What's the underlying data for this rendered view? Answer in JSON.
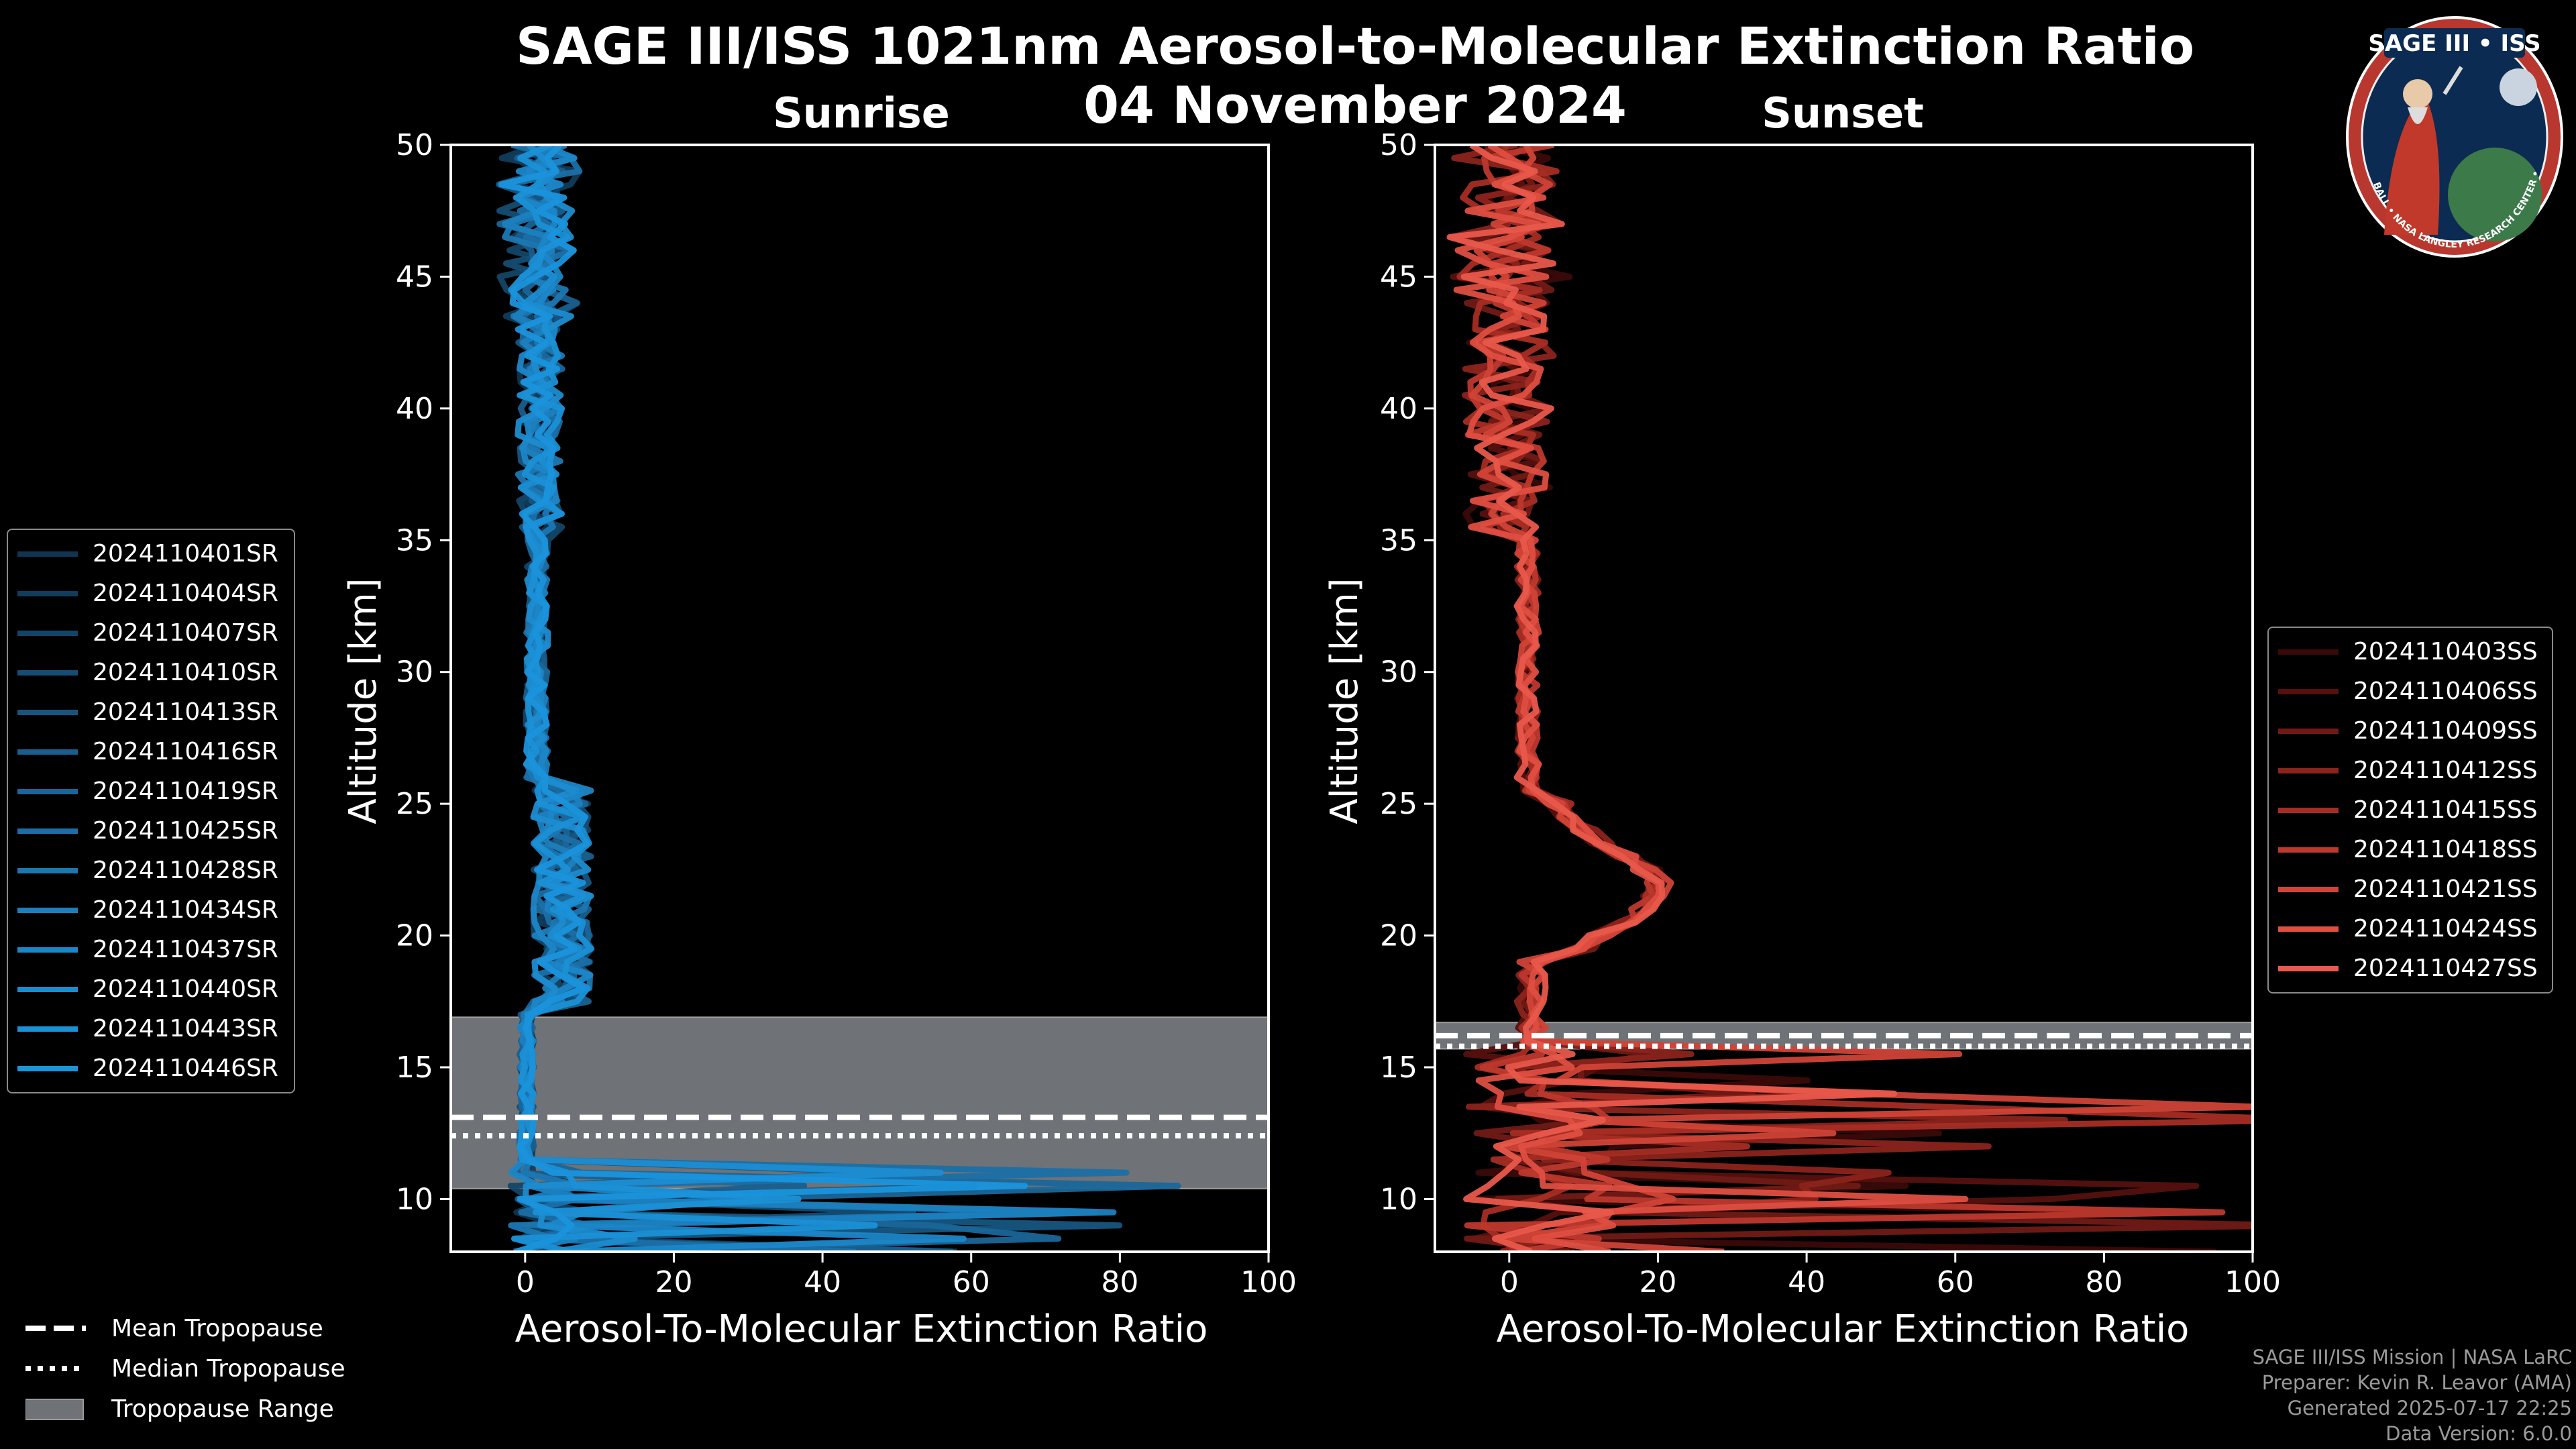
{
  "title_line1": "SAGE III/ISS 1021nm Aerosol-to-Molecular Extinction Ratio",
  "title_date": "04 November 2024",
  "logo": {
    "text": "SAGE III • ISS",
    "ring_text": "BALL • NASA LANGLEY RESEARCH CENTER • TAS-I • ESA"
  },
  "colors": {
    "sunrise": "#1a8fd6",
    "sunset": "#e8594b",
    "trop_range": "#6f7276"
  },
  "chart_data": [
    {
      "type": "line",
      "panel": "sunrise",
      "title": "Sunrise",
      "xlabel": "Aerosol-To-Molecular Extinction Ratio",
      "ylabel": "Altitude [km]",
      "xlim": [
        -10,
        100
      ],
      "ylim": [
        8,
        50
      ],
      "xticks": [
        0,
        20,
        40,
        60,
        80,
        100
      ],
      "yticks": [
        10,
        15,
        20,
        25,
        30,
        35,
        40,
        45,
        50
      ],
      "tropopause": {
        "mean": 13.1,
        "median": 12.4,
        "range": [
          10.4,
          16.9
        ]
      },
      "series_names": [
        "2024110401SR",
        "2024110404SR",
        "2024110407SR",
        "2024110410SR",
        "2024110413SR",
        "2024110416SR",
        "2024110419SR",
        "2024110425SR",
        "2024110428SR",
        "2024110434SR",
        "2024110437SR",
        "2024110440SR",
        "2024110443SR",
        "2024110446SR"
      ],
      "series_colors": [
        "#0f3550",
        "#113c5c",
        "#134467",
        "#154d74",
        "#175580",
        "#195e8c",
        "#1a6699",
        "#1b6fa6",
        "#1c77b2",
        "#1c7fbe",
        "#1c86c8",
        "#1c8cd0",
        "#1b90d6",
        "#1a94dc"
      ]
    },
    {
      "type": "line",
      "panel": "sunset",
      "title": "Sunset",
      "xlabel": "Aerosol-To-Molecular Extinction Ratio",
      "ylabel": "Altitude [km]",
      "xlim": [
        -10,
        100
      ],
      "ylim": [
        8,
        50
      ],
      "xticks": [
        0,
        20,
        40,
        60,
        80,
        100
      ],
      "yticks": [
        10,
        15,
        20,
        25,
        30,
        35,
        40,
        45,
        50
      ],
      "tropopause": {
        "mean": 16.2,
        "median": 15.8,
        "range": [
          15.7,
          16.7
        ]
      },
      "series_names": [
        "2024110403SS",
        "2024110406SS",
        "2024110409SS",
        "2024110412SS",
        "2024110415SS",
        "2024110418SS",
        "2024110421SS",
        "2024110424SS",
        "2024110427SS"
      ],
      "series_colors": [
        "#3a0a08",
        "#55110e",
        "#701a15",
        "#8c231c",
        "#a62d24",
        "#bd382d",
        "#d04337",
        "#de4e41",
        "#e8594b"
      ]
    }
  ],
  "trop_legend": {
    "mean": "Mean Tropopause",
    "median": "Median Tropopause",
    "range": "Tropopause Range"
  },
  "footer": {
    "line1": "SAGE III/ISS Mission | NASA LaRC",
    "line2": "Preparer: Kevin R. Leavor (AMA)",
    "line3": "Generated 2025-07-17 22:25",
    "line4": "Data Version: 6.0.0"
  }
}
